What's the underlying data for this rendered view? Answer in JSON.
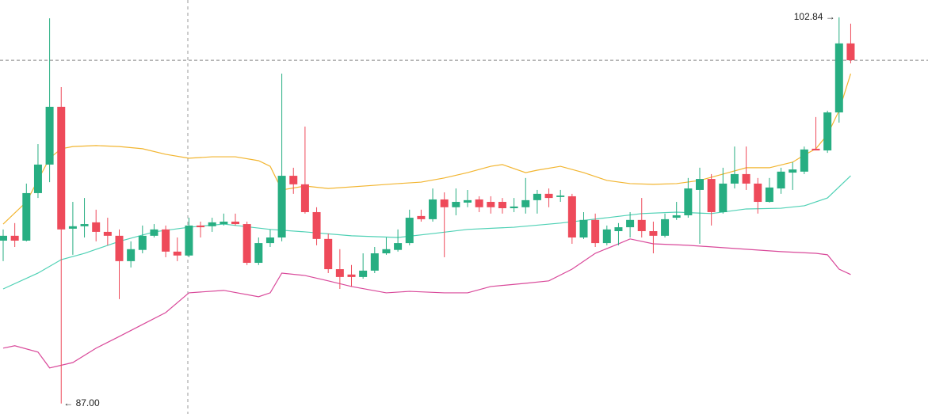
{
  "chart_data": {
    "type": "candlestick",
    "ylim": [
      86.57,
      103.55
    ],
    "up_color": "#27ae82",
    "down_color": "#ee4a5a",
    "open": [
      93.68,
      93.88,
      93.68,
      95.63,
      96.8,
      99.17,
      94.17,
      94.27,
      94.43,
      94.04,
      93.88,
      92.84,
      93.3,
      93.88,
      94.14,
      93.23,
      93.07,
      94.3,
      94.27,
      94.36,
      94.46,
      94.36,
      92.77,
      93.58,
      93.81,
      96.34,
      95.99,
      94.85,
      93.75,
      92.51,
      92.29,
      92.19,
      92.45,
      93.16,
      93.3,
      93.58,
      94.69,
      94.56,
      95.37,
      95.05,
      95.24,
      95.37,
      95.27,
      95.27,
      95.01,
      95.05,
      95.34,
      95.6,
      95.47,
      95.5,
      93.81,
      94.53,
      93.58,
      94.07,
      94.23,
      94.53,
      94.07,
      93.88,
      94.62,
      94.72,
      95.76,
      96.21,
      94.85,
      96.02,
      96.41,
      96.02,
      95.27,
      95.82,
      96.47,
      96.51,
      97.45,
      97.38,
      98.94,
      101.77
    ],
    "high": [
      94.14,
      94.4,
      96.02,
      97.64,
      102.8,
      99.98,
      95.27,
      95.43,
      94.95,
      94.62,
      94.14,
      93.65,
      94.3,
      94.36,
      94.3,
      93.81,
      94.62,
      94.46,
      94.62,
      94.79,
      94.79,
      94.46,
      93.81,
      94.14,
      100.53,
      96.67,
      98.36,
      95.05,
      93.97,
      93.33,
      92.68,
      93.16,
      93.42,
      93.81,
      94.14,
      94.95,
      94.95,
      95.82,
      95.66,
      95.82,
      95.76,
      95.5,
      95.5,
      95.43,
      95.43,
      96.25,
      95.76,
      95.82,
      95.76,
      95.6,
      94.85,
      94.79,
      94.3,
      94.4,
      94.85,
      95.43,
      94.46,
      94.79,
      95.27,
      96.25,
      96.67,
      96.41,
      96.67,
      97.54,
      97.54,
      96.25,
      96.25,
      96.67,
      96.9,
      97.54,
      98.75,
      99.01,
      102.84,
      102.58
    ],
    "low": [
      92.84,
      93.42,
      93.65,
      95.43,
      96.08,
      87.0,
      93.1,
      93.81,
      93.65,
      93.49,
      91.28,
      92.58,
      93.16,
      93.81,
      93.0,
      92.84,
      93.0,
      93.81,
      94.04,
      94.3,
      94.3,
      92.68,
      92.68,
      93.42,
      93.65,
      95.6,
      94.79,
      93.49,
      92.35,
      91.7,
      91.8,
      92.12,
      92.35,
      93.1,
      93.23,
      93.49,
      94.46,
      94.46,
      93.0,
      94.72,
      95.05,
      94.85,
      94.79,
      94.79,
      94.85,
      94.79,
      94.79,
      95.05,
      95.27,
      93.55,
      93.75,
      93.42,
      93.49,
      93.49,
      93.81,
      93.81,
      93.16,
      93.81,
      94.53,
      94.62,
      93.55,
      94.3,
      94.79,
      95.82,
      95.76,
      94.79,
      95.24,
      95.6,
      95.76,
      96.41,
      97.38,
      97.28,
      98.52,
      100.95
    ],
    "close": [
      93.88,
      93.68,
      95.63,
      96.8,
      99.17,
      94.14,
      94.27,
      94.36,
      94.04,
      93.88,
      92.84,
      93.33,
      93.88,
      94.14,
      93.23,
      93.07,
      94.3,
      94.23,
      94.43,
      94.46,
      94.36,
      92.77,
      93.58,
      93.81,
      96.34,
      95.99,
      94.85,
      93.75,
      92.51,
      92.19,
      92.19,
      92.45,
      93.16,
      93.33,
      93.58,
      94.62,
      94.56,
      95.37,
      95.05,
      95.27,
      95.34,
      95.05,
      95.05,
      95.01,
      95.08,
      95.34,
      95.6,
      95.43,
      95.53,
      93.81,
      94.53,
      93.58,
      94.14,
      94.23,
      94.53,
      94.07,
      93.88,
      94.56,
      94.72,
      95.82,
      96.21,
      94.85,
      96.02,
      96.41,
      96.02,
      95.27,
      95.86,
      96.51,
      96.6,
      97.42,
      97.38,
      98.94,
      101.77,
      101.08
    ],
    "lines": [
      {
        "color": "#f2b530",
        "x": [
          0,
          2,
          4,
          5,
          6,
          8,
          10,
          12,
          14,
          16,
          18,
          20,
          22,
          23,
          24,
          26,
          28,
          32,
          34,
          36,
          38,
          40,
          42,
          43,
          45,
          46,
          48,
          50,
          52,
          54,
          56,
          58,
          60,
          62,
          64,
          66,
          68,
          69,
          70,
          71,
          72,
          73
        ],
        "values": [
          94.36,
          95.27,
          97.06,
          97.45,
          97.54,
          97.58,
          97.54,
          97.45,
          97.22,
          97.06,
          97.12,
          97.12,
          96.96,
          96.73,
          95.76,
          95.92,
          95.82,
          95.95,
          96.02,
          96.08,
          96.25,
          96.47,
          96.73,
          96.8,
          96.47,
          96.57,
          96.73,
          96.47,
          96.15,
          96.02,
          95.99,
          96.02,
          96.15,
          96.41,
          96.67,
          96.67,
          96.9,
          97.19,
          97.45,
          98.03,
          99.01,
          100.53
        ]
      },
      {
        "color": "#4fd1b5",
        "x": [
          0,
          3,
          5,
          7,
          10,
          13,
          16,
          19,
          23,
          26,
          30,
          34,
          37,
          40,
          44,
          48,
          52,
          55,
          58,
          61,
          64,
          67,
          69,
          71,
          73
        ],
        "values": [
          91.7,
          92.35,
          92.9,
          93.16,
          93.65,
          94.04,
          94.23,
          94.36,
          94.14,
          94.04,
          93.88,
          93.81,
          93.97,
          94.14,
          94.23,
          94.4,
          94.62,
          94.79,
          94.85,
          94.79,
          94.98,
          95.01,
          95.11,
          95.43,
          96.34
        ]
      },
      {
        "color": "#d9499a",
        "x": [
          0,
          1,
          3,
          4,
          6,
          8,
          10,
          12,
          14,
          16,
          19,
          22,
          23,
          24,
          26,
          28,
          30,
          33,
          35,
          38,
          40,
          42,
          45,
          47,
          49,
          51,
          53,
          54,
          56,
          59,
          63,
          67,
          70,
          71,
          72,
          73
        ],
        "values": [
          89.27,
          89.37,
          89.11,
          88.46,
          88.68,
          89.27,
          89.75,
          90.24,
          90.73,
          91.54,
          91.64,
          91.38,
          91.54,
          92.35,
          92.25,
          92.03,
          91.8,
          91.54,
          91.6,
          91.54,
          91.54,
          91.8,
          91.93,
          92.03,
          92.51,
          93.16,
          93.55,
          93.75,
          93.55,
          93.49,
          93.36,
          93.23,
          93.16,
          93.1,
          92.51,
          92.29
        ]
      }
    ],
    "annotations": [
      {
        "value": 102.84,
        "label": "102.84 →"
      },
      {
        "value": 87.0,
        "label": "← 87.00"
      }
    ]
  }
}
